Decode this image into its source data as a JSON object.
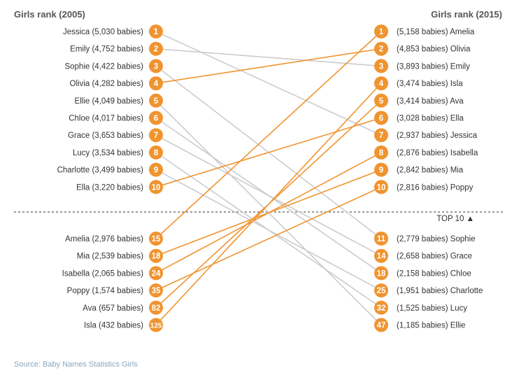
{
  "colors": {
    "accent": "#f0942f",
    "line_grey": "#cccccc",
    "text": "#333333",
    "source": "#8aa7bd"
  },
  "headers": {
    "left": "Girls rank (2005)",
    "right": "Girls rank (2015)"
  },
  "top10_label": "TOP 10 ▲",
  "source_text": "Source: Baby Names Statistics Girls",
  "chart_data": {
    "type": "slope",
    "title_left": "Girls rank (2005)",
    "title_right": "Girls rank (2015)",
    "left": [
      {
        "name": "Jessica",
        "babies": "5,030",
        "rank": 1
      },
      {
        "name": "Emily",
        "babies": "4,752",
        "rank": 2
      },
      {
        "name": "Sophie",
        "babies": "4,422",
        "rank": 3
      },
      {
        "name": "Olivia",
        "babies": "4,282",
        "rank": 4
      },
      {
        "name": "Ellie",
        "babies": "4,049",
        "rank": 5
      },
      {
        "name": "Chloe",
        "babies": "4,017",
        "rank": 6
      },
      {
        "name": "Grace",
        "babies": "3,653",
        "rank": 7
      },
      {
        "name": "Lucy",
        "babies": "3,534",
        "rank": 8
      },
      {
        "name": "Charlotte",
        "babies": "3,499",
        "rank": 9
      },
      {
        "name": "Ella",
        "babies": "3,220",
        "rank": 10
      },
      {
        "name": "Amelia",
        "babies": "2,976",
        "rank": 15
      },
      {
        "name": "Mia",
        "babies": "2,539",
        "rank": 18
      },
      {
        "name": "Isabella",
        "babies": "2,065",
        "rank": 24
      },
      {
        "name": "Poppy",
        "babies": "1,574",
        "rank": 35
      },
      {
        "name": "Ava",
        "babies": "657",
        "rank": 82
      },
      {
        "name": "Isla",
        "babies": "432",
        "rank": 125
      }
    ],
    "right": [
      {
        "name": "Amelia",
        "babies": "5,158",
        "rank": 1
      },
      {
        "name": "Olivia",
        "babies": "4,853",
        "rank": 2
      },
      {
        "name": "Emily",
        "babies": "3,893",
        "rank": 3
      },
      {
        "name": "Isla",
        "babies": "3,474",
        "rank": 4
      },
      {
        "name": "Ava",
        "babies": "3,414",
        "rank": 5
      },
      {
        "name": "Ella",
        "babies": "3,028",
        "rank": 6
      },
      {
        "name": "Jessica",
        "babies": "2,937",
        "rank": 7
      },
      {
        "name": "Isabella",
        "babies": "2,876",
        "rank": 8
      },
      {
        "name": "Mia",
        "babies": "2,842",
        "rank": 9
      },
      {
        "name": "Poppy",
        "babies": "2,816",
        "rank": 10
      },
      {
        "name": "Sophie",
        "babies": "2,779",
        "rank": 11
      },
      {
        "name": "Grace",
        "babies": "2,658",
        "rank": 14
      },
      {
        "name": "Chloe",
        "babies": "2,158",
        "rank": 18
      },
      {
        "name": "Charlotte",
        "babies": "1,951",
        "rank": 25
      },
      {
        "name": "Lucy",
        "babies": "1,525",
        "rank": 32
      },
      {
        "name": "Ellie",
        "babies": "1,185",
        "rank": 47
      }
    ]
  }
}
